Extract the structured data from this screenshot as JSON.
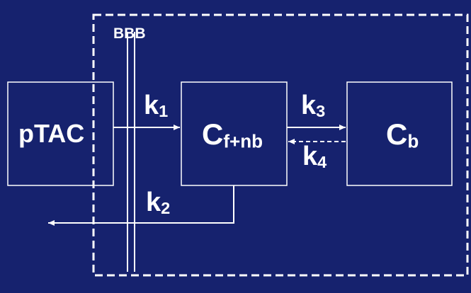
{
  "diagram": {
    "barrier_label": "BBB",
    "compartments": {
      "plasma": {
        "label": "pTAC"
      },
      "free": {
        "main": "C",
        "sub": "f+nb"
      },
      "bound": {
        "main": "C",
        "sub": "b"
      }
    },
    "rates": {
      "k1": {
        "main": "k",
        "sub": "1"
      },
      "k2": {
        "main": "k",
        "sub": "2"
      },
      "k3": {
        "main": "k",
        "sub": "3"
      },
      "k4": {
        "main": "k",
        "sub": "4"
      }
    },
    "colors": {
      "background": "#16226e",
      "foreground": "#ffffff"
    }
  }
}
